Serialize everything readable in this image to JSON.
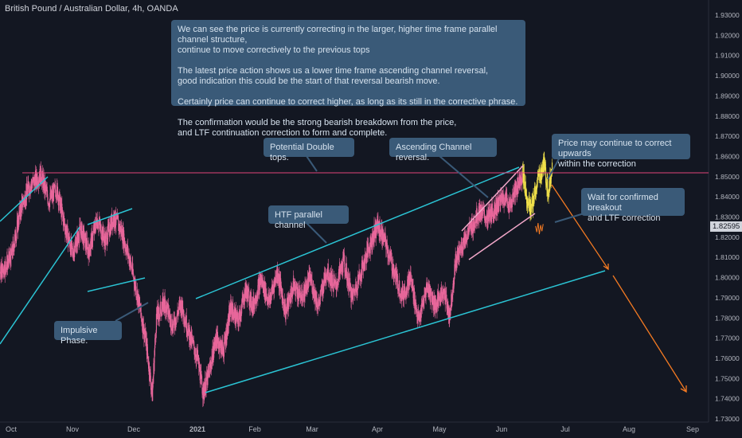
{
  "header": {
    "title": "British Pound / Australian Dollar, 4h, OANDA"
  },
  "callouts": {
    "main_note": "We can see the price is currently correcting in the larger, higher time frame parallel channel structure,\ncontinue to move correctively to the previous tops\n\nThe latest price action shows us a lower time frame ascending channel reversal,\ngood indication this could be the start of that reversal bearish move.\n\nCertainly price can continue to correct higher, as long as its still in the corrective phrase.\n\nThe confirmation would be the strong bearish breakdown from the price,\nand LTF continuation correction to form and complete.",
    "double_tops": "Potential Double tops.",
    "ascending_channel": "Ascending Channel reversal.",
    "correct_upwards": "Price may continue to correct upwards\nwithin the correction",
    "wait_breakout": "Wait for confirmed breakout\nand LTF correction",
    "htf_channel": "HTF parallel channel",
    "impulsive": "Impulsive Phase."
  },
  "current_price_label": "1.82595",
  "colors": {
    "background": "#131722",
    "candle": "#e8679b",
    "candle_recent": "#f0e04a",
    "channel_line": "#2bc4d4",
    "ltf_channel": "#f2a7c9",
    "resistance": "#e0457b",
    "projection": "#f47a22",
    "callout_bg": "#3a5a78",
    "axis_text": "#b2b5be"
  },
  "chart_data": {
    "type": "candlestick",
    "title": "British Pound / Australian Dollar, 4h, OANDA",
    "x_ticks": [
      "Oct",
      "Nov",
      "Dec",
      "2021",
      "Feb",
      "Mar",
      "Apr",
      "May",
      "Jun",
      "Jul",
      "Aug",
      "Sep"
    ],
    "y_ticks": [
      "1.93000",
      "1.92000",
      "1.91000",
      "1.90000",
      "1.89000",
      "1.88000",
      "1.87000",
      "1.86000",
      "1.85000",
      "1.84000",
      "1.83000",
      "1.82000",
      "1.81000",
      "1.80000",
      "1.79000",
      "1.78000",
      "1.77000",
      "1.76000",
      "1.75000",
      "1.74000",
      "1.73000"
    ],
    "ylim": [
      1.7275,
      1.9375
    ],
    "last_price": 1.82595,
    "resistance_level": 1.852,
    "price_path": [
      [
        "2020-09-20",
        1.818
      ],
      [
        "2020-09-25",
        1.802
      ],
      [
        "2020-10-01",
        1.81
      ],
      [
        "2020-10-06",
        1.835
      ],
      [
        "2020-10-10",
        1.845
      ],
      [
        "2020-10-16",
        1.851
      ],
      [
        "2020-10-20",
        1.838
      ],
      [
        "2020-10-24",
        1.844
      ],
      [
        "2020-10-28",
        1.826
      ],
      [
        "2020-11-01",
        1.812
      ],
      [
        "2020-11-05",
        1.824
      ],
      [
        "2020-11-09",
        1.813
      ],
      [
        "2020-11-13",
        1.829
      ],
      [
        "2020-11-17",
        1.818
      ],
      [
        "2020-11-21",
        1.83
      ],
      [
        "2020-11-25",
        1.823
      ],
      [
        "2020-11-29",
        1.809
      ],
      [
        "2020-12-03",
        1.79
      ],
      [
        "2020-12-07",
        1.768
      ],
      [
        "2020-12-10",
        1.742
      ],
      [
        "2020-12-12",
        1.78
      ],
      [
        "2020-12-16",
        1.788
      ],
      [
        "2020-12-20",
        1.776
      ],
      [
        "2020-12-24",
        1.787
      ],
      [
        "2020-12-28",
        1.772
      ],
      [
        "2021-01-01",
        1.76
      ],
      [
        "2021-01-04",
        1.743
      ],
      [
        "2021-01-07",
        1.752
      ],
      [
        "2021-01-11",
        1.77
      ],
      [
        "2021-01-15",
        1.764
      ],
      [
        "2021-01-19",
        1.785
      ],
      [
        "2021-01-23",
        1.778
      ],
      [
        "2021-01-27",
        1.794
      ],
      [
        "2021-01-31",
        1.786
      ],
      [
        "2021-02-04",
        1.799
      ],
      [
        "2021-02-08",
        1.788
      ],
      [
        "2021-02-12",
        1.803
      ],
      [
        "2021-02-16",
        1.783
      ],
      [
        "2021-02-20",
        1.796
      ],
      [
        "2021-02-24",
        1.79
      ],
      [
        "2021-02-28",
        1.8
      ],
      [
        "2021-03-04",
        1.786
      ],
      [
        "2021-03-08",
        1.804
      ],
      [
        "2021-03-12",
        1.795
      ],
      [
        "2021-03-16",
        1.808
      ],
      [
        "2021-03-20",
        1.79
      ],
      [
        "2021-03-24",
        1.802
      ],
      [
        "2021-03-28",
        1.815
      ],
      [
        "2021-04-01",
        1.826
      ],
      [
        "2021-04-05",
        1.817
      ],
      [
        "2021-04-09",
        1.803
      ],
      [
        "2021-04-13",
        1.791
      ],
      [
        "2021-04-17",
        1.8
      ],
      [
        "2021-04-21",
        1.778
      ],
      [
        "2021-04-25",
        1.796
      ],
      [
        "2021-04-29",
        1.786
      ],
      [
        "2021-05-03",
        1.794
      ],
      [
        "2021-05-06",
        1.781
      ],
      [
        "2021-05-09",
        1.808
      ],
      [
        "2021-05-13",
        1.818
      ],
      [
        "2021-05-17",
        1.825
      ],
      [
        "2021-05-21",
        1.833
      ],
      [
        "2021-05-25",
        1.829
      ],
      [
        "2021-05-29",
        1.835
      ],
      [
        "2021-06-02",
        1.84
      ],
      [
        "2021-06-05",
        1.836
      ],
      [
        "2021-06-08",
        1.844
      ],
      [
        "2021-06-11",
        1.852
      ],
      [
        "2021-06-13",
        1.839
      ],
      [
        "2021-06-15",
        1.833
      ],
      [
        "2021-06-18",
        1.848
      ],
      [
        "2021-06-21",
        1.856
      ],
      [
        "2021-06-23",
        1.842
      ],
      [
        "2021-06-25",
        1.857
      ]
    ],
    "recent_from": "2021-06-11"
  }
}
